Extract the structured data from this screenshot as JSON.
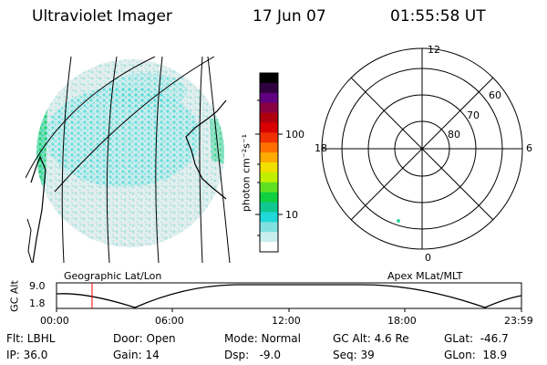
{
  "header": {
    "instrument": "Ultraviolet Imager",
    "date": "17 Jun 07",
    "time": "01:55:58 UT"
  },
  "geo_panel": {
    "caption": "Geographic Lat/Lon"
  },
  "colorbar": {
    "unit_label": "photon cm⁻²s⁻¹",
    "ticks": [
      "100",
      "10"
    ],
    "colors": [
      "#000000",
      "#300040",
      "#600080",
      "#8a0040",
      "#b00010",
      "#d80000",
      "#f03000",
      "#ff7000",
      "#ffaa00",
      "#f0e000",
      "#c0f000",
      "#60e020",
      "#10d040",
      "#10c890",
      "#20d8d8",
      "#80e0e0",
      "#c8eeee",
      "#ffffff"
    ]
  },
  "polar_panel": {
    "caption": "Apex MLat/MLT",
    "mlt_labels": [
      "12",
      "18",
      "6",
      "0"
    ],
    "mlat_labels": [
      "60",
      "70",
      "80"
    ]
  },
  "alt_plot": {
    "ylabel": "GC Alt",
    "y_ticks": [
      "9.0",
      "1.8"
    ],
    "x_ticks": [
      "00:00",
      "06:00",
      "12:00",
      "18:00",
      "23:59"
    ],
    "marker_color": "#ff0000"
  },
  "footer": {
    "flt": "Flt: LBHL",
    "ip": "IP: 36.0",
    "door": "Door: Open",
    "gain": "Gain: 14",
    "mode": "Mode: Normal",
    "dsp": "Dsp:   -9.0",
    "gcalt": "GC Alt: 4.6 Re",
    "seq": "Seq: 39",
    "glat": "GLat:  -46.7",
    "glon": "GLon:  18.9"
  }
}
